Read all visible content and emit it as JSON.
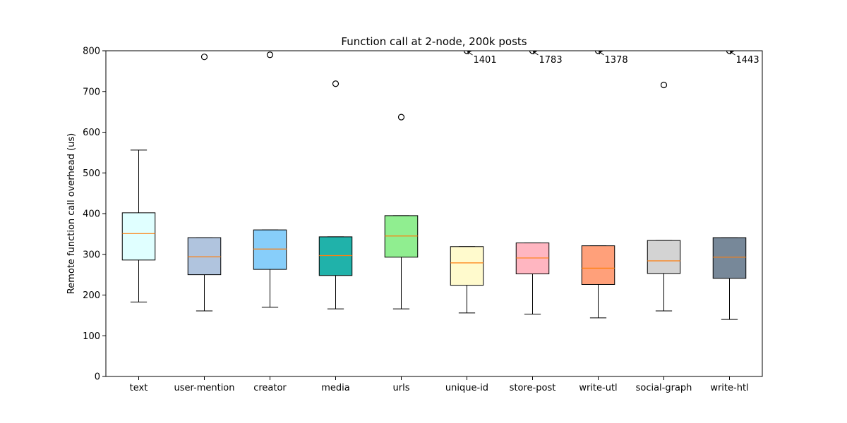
{
  "chart_data": {
    "type": "box",
    "title": "Function call at 2-node, 200k posts",
    "xlabel": "",
    "ylabel": "Remote function call overhead (us)",
    "ylim": [
      0,
      800
    ],
    "yticks": [
      0,
      100,
      200,
      300,
      400,
      500,
      600,
      700,
      800
    ],
    "grid": false,
    "categories": [
      "text",
      "user-mention",
      "creator",
      "media",
      "urls",
      "unique-id",
      "store-post",
      "write-utl",
      "social-graph",
      "write-htl"
    ],
    "colors": [
      "#e0ffff",
      "#b0c4de",
      "#87cefa",
      "#20b2aa",
      "#90ee90",
      "#fffacd",
      "#ffb6c1",
      "#ffa07a",
      "#d3d3d3",
      "#778899"
    ],
    "median_color": "#ff7f0e",
    "boxes": [
      {
        "min": 183,
        "q1": 286,
        "median": 351,
        "q3": 402,
        "max": 556,
        "outliers": []
      },
      {
        "min": 161,
        "q1": 250,
        "median": 294,
        "q3": 341,
        "max": 341,
        "outliers": [
          785
        ]
      },
      {
        "min": 170,
        "q1": 263,
        "median": 313,
        "q3": 360,
        "max": 360,
        "outliers": [
          790
        ]
      },
      {
        "min": 166,
        "q1": 248,
        "median": 297,
        "q3": 343,
        "max": 343,
        "outliers": [
          719
        ]
      },
      {
        "min": 166,
        "q1": 293,
        "median": 345,
        "q3": 395,
        "max": 395,
        "outliers": [
          637
        ]
      },
      {
        "min": 156,
        "q1": 224,
        "median": 279,
        "q3": 319,
        "max": 319,
        "outliers": []
      },
      {
        "min": 153,
        "q1": 252,
        "median": 291,
        "q3": 328,
        "max": 328,
        "outliers": []
      },
      {
        "min": 144,
        "q1": 226,
        "median": 266,
        "q3": 321,
        "max": 321,
        "outliers": []
      },
      {
        "min": 161,
        "q1": 253,
        "median": 284,
        "q3": 334,
        "max": 334,
        "outliers": [
          716
        ]
      },
      {
        "min": 140,
        "q1": 241,
        "median": 293,
        "q3": 341,
        "max": 341,
        "outliers": []
      }
    ],
    "annotations": [
      {
        "category": "unique-id",
        "value": 1401,
        "text": "1401"
      },
      {
        "category": "store-post",
        "value": 1783,
        "text": "1783"
      },
      {
        "category": "write-utl",
        "value": 1378,
        "text": "1378"
      },
      {
        "category": "write-htl",
        "value": 1443,
        "text": "1443"
      }
    ]
  }
}
